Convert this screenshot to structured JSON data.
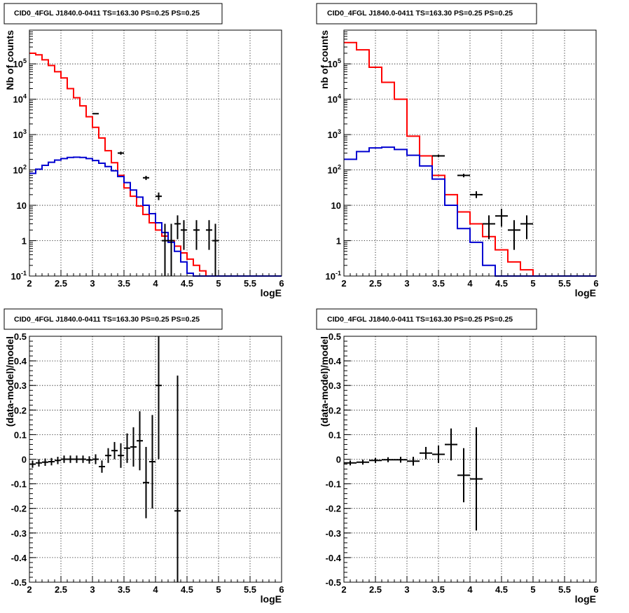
{
  "panel_title": "CID0_4FGL J1840.0-0411 TS=163.30 PS=0.25 PS=0.25",
  "colors": {
    "model_total": "#ff0000",
    "source_component": "#0000d0",
    "data": "#000000"
  },
  "chart_data": [
    {
      "id": "counts-fine",
      "type": "line",
      "title": "CID0_4FGL J1840.0-0411 TS=163.30 PS=0.25 PS=0.25",
      "xlabel": "logE",
      "ylabel": "Nb of counts",
      "xlim": [
        2,
        6
      ],
      "ylim": [
        0.1,
        900000
      ],
      "yscale": "log",
      "grid": true,
      "x_ticks": [
        "2",
        "2.5",
        "3",
        "3.5",
        "4",
        "4.5",
        "5",
        "5.5",
        "6"
      ],
      "y_ticks": [
        {
          "v": 0.1,
          "label": "10",
          "exp": "-1"
        },
        {
          "v": 1,
          "label": "1",
          "exp": ""
        },
        {
          "v": 10,
          "label": "10",
          "exp": ""
        },
        {
          "v": 100,
          "label": "10",
          "exp": "2"
        },
        {
          "v": 1000,
          "label": "10",
          "exp": "3"
        },
        {
          "v": 10000,
          "label": "10",
          "exp": "4"
        },
        {
          "v": 100000,
          "label": "10",
          "exp": "5"
        }
      ],
      "bin_edges": [
        2.0,
        2.1,
        2.2,
        2.3,
        2.4,
        2.5,
        2.6,
        2.7,
        2.8,
        2.9,
        3.0,
        3.1,
        3.2,
        3.3,
        3.4,
        3.5,
        3.6,
        3.7,
        3.8,
        3.9,
        4.0,
        4.1,
        4.2,
        4.3,
        4.4,
        4.5,
        4.6,
        4.7,
        4.8,
        4.9,
        5.0,
        5.1,
        5.2,
        5.3,
        5.4,
        5.5,
        5.6,
        5.7,
        5.8,
        5.9,
        6.0
      ],
      "series": [
        {
          "role": "model_total",
          "values": [
            200000,
            180000,
            130000,
            90000,
            60000,
            40000,
            20000,
            11000,
            6500,
            3200,
            1600,
            800,
            350,
            160,
            70,
            31,
            18,
            9.5,
            5.5,
            3.2,
            2.0,
            1.35,
            1.0,
            0.7,
            0.45,
            0.3,
            0.2,
            0.14,
            0.1,
            0.1,
            0.1,
            0.1,
            0.1,
            0.1,
            0.1,
            0.1,
            0.1,
            0.1,
            0.1,
            0.1
          ]
        },
        {
          "role": "source_component",
          "values": [
            80,
            105,
            135,
            165,
            190,
            210,
            225,
            230,
            225,
            210,
            185,
            155,
            125,
            95,
            65,
            44,
            27,
            17,
            10,
            5.8,
            3.2,
            1.7,
            0.9,
            0.5,
            0.25,
            0.12,
            0.1,
            0.1,
            0.1,
            0.1,
            0.1,
            0.1,
            0.1,
            0.1,
            0.1,
            0.1,
            0.1,
            0.1,
            0.1,
            0.1
          ]
        }
      ],
      "data_points": [
        {
          "x": 3.05,
          "y": 3900,
          "xerr": 0.05
        },
        {
          "x": 3.45,
          "y": 300,
          "xerr": 0.05,
          "ylo": 270,
          "yhi": 330
        },
        {
          "x": 3.85,
          "y": 60,
          "xerr": 0.05,
          "ylo": 52,
          "yhi": 68
        },
        {
          "x": 4.05,
          "y": 18,
          "xerr": 0.05,
          "ylo": 14,
          "yhi": 23
        },
        {
          "x": 4.15,
          "y": 1,
          "xerr": 0.05,
          "ylo": 0.1,
          "yhi": 3
        },
        {
          "x": 4.25,
          "y": 1,
          "xerr": 0.05,
          "ylo": 0.1,
          "yhi": 3
        },
        {
          "x": 4.35,
          "y": 3,
          "xerr": 0.05,
          "ylo": 1.1,
          "yhi": 5.2
        },
        {
          "x": 4.45,
          "y": 2,
          "xerr": 0.05,
          "ylo": 0.55,
          "yhi": 3.8
        },
        {
          "x": 4.65,
          "y": 2,
          "xerr": 0.05,
          "ylo": 0.55,
          "yhi": 3.8
        },
        {
          "x": 4.85,
          "y": 2,
          "xerr": 0.05,
          "ylo": 0.55,
          "yhi": 3.8
        },
        {
          "x": 4.95,
          "y": 1,
          "xerr": 0.05,
          "ylo": 0.1,
          "yhi": 3
        }
      ]
    },
    {
      "id": "counts-coarse",
      "type": "line",
      "title": "CID0_4FGL J1840.0-0411 TS=163.30 PS=0.25 PS=0.25",
      "xlabel": "logE",
      "ylabel": "nb of counts",
      "xlim": [
        2,
        6
      ],
      "ylim": [
        0.1,
        900000
      ],
      "yscale": "log",
      "grid": true,
      "x_ticks": [
        "2",
        "2.5",
        "3",
        "3.5",
        "4",
        "4.5",
        "5",
        "5.5",
        "6"
      ],
      "y_ticks": [
        {
          "v": 0.1,
          "label": "10",
          "exp": "-1"
        },
        {
          "v": 1,
          "label": "1",
          "exp": ""
        },
        {
          "v": 10,
          "label": "10",
          "exp": ""
        },
        {
          "v": 100,
          "label": "10",
          "exp": "2"
        },
        {
          "v": 1000,
          "label": "10",
          "exp": "3"
        },
        {
          "v": 10000,
          "label": "10",
          "exp": "4"
        },
        {
          "v": 100000,
          "label": "10",
          "exp": "5"
        }
      ],
      "bin_edges": [
        2.0,
        2.2,
        2.4,
        2.6,
        2.8,
        3.0,
        3.2,
        3.4,
        3.6,
        3.8,
        4.0,
        4.2,
        4.4,
        4.6,
        4.8,
        5.0,
        5.2,
        5.4,
        5.6,
        5.8,
        6.0
      ],
      "series": [
        {
          "role": "model_total",
          "values": [
            400000,
            250000,
            80000,
            30000,
            10000,
            900,
            250,
            70,
            20,
            6.5,
            3.0,
            1.3,
            0.55,
            0.25,
            0.15,
            0.1,
            0.1,
            0.1,
            0.1,
            0.1
          ]
        },
        {
          "role": "source_component",
          "values": [
            200,
            330,
            420,
            440,
            380,
            260,
            130,
            55,
            10,
            2.2,
            0.9,
            0.2,
            0.1,
            0.1,
            0.1,
            0.1,
            0.1,
            0.1,
            0.1,
            0.1
          ]
        }
      ],
      "data_points": [
        {
          "x": 3.5,
          "y": 250,
          "xerr": 0.1,
          "ylo": 230,
          "yhi": 270
        },
        {
          "x": 3.9,
          "y": 70,
          "xerr": 0.1,
          "ylo": 62,
          "yhi": 78
        },
        {
          "x": 4.1,
          "y": 20,
          "xerr": 0.1,
          "ylo": 16,
          "yhi": 25
        },
        {
          "x": 4.3,
          "y": 3,
          "xerr": 0.1,
          "ylo": 1.1,
          "yhi": 5.2
        },
        {
          "x": 4.5,
          "y": 5,
          "xerr": 0.1,
          "ylo": 2.5,
          "yhi": 8
        },
        {
          "x": 4.7,
          "y": 2,
          "xerr": 0.1,
          "ylo": 0.55,
          "yhi": 3.8
        },
        {
          "x": 4.9,
          "y": 3,
          "xerr": 0.1,
          "ylo": 1.1,
          "yhi": 5.2
        }
      ]
    },
    {
      "id": "residuals-fine",
      "type": "scatter",
      "title": "CID0_4FGL J1840.0-0411 TS=163.30 PS=0.25 PS=0.25",
      "xlabel": "logE",
      "ylabel": "(data-model)/model",
      "xlim": [
        2,
        6
      ],
      "ylim": [
        -0.5,
        0.5
      ],
      "grid": true,
      "x_ticks": [
        "2",
        "2.5",
        "3",
        "3.5",
        "4",
        "4.5",
        "5",
        "5.5",
        "6"
      ],
      "y_ticks": [
        "-0.5",
        "-0.4",
        "-0.3",
        "-0.2",
        "-0.1",
        "0",
        "0.1",
        "0.2",
        "0.3",
        "0.4",
        "0.5"
      ],
      "points": [
        {
          "x": 2.05,
          "y": -0.02,
          "xerr": 0.05,
          "yerr": 0.015
        },
        {
          "x": 2.15,
          "y": -0.015,
          "xerr": 0.05,
          "yerr": 0.015
        },
        {
          "x": 2.25,
          "y": -0.012,
          "xerr": 0.05,
          "yerr": 0.015
        },
        {
          "x": 2.35,
          "y": -0.01,
          "xerr": 0.05,
          "yerr": 0.015
        },
        {
          "x": 2.45,
          "y": -0.005,
          "xerr": 0.05,
          "yerr": 0.015
        },
        {
          "x": 2.55,
          "y": 0.0,
          "xerr": 0.05,
          "yerr": 0.015
        },
        {
          "x": 2.65,
          "y": 0.0,
          "xerr": 0.05,
          "yerr": 0.015
        },
        {
          "x": 2.75,
          "y": 0.0,
          "xerr": 0.05,
          "yerr": 0.015
        },
        {
          "x": 2.85,
          "y": 0.0,
          "xerr": 0.05,
          "yerr": 0.015
        },
        {
          "x": 2.95,
          "y": -0.003,
          "xerr": 0.05,
          "yerr": 0.015
        },
        {
          "x": 3.05,
          "y": 0.0,
          "xerr": 0.05,
          "yerr": 0.02
        },
        {
          "x": 3.15,
          "y": -0.03,
          "xerr": 0.05,
          "yerr": 0.025
        },
        {
          "x": 3.25,
          "y": 0.015,
          "xerr": 0.05,
          "yerr": 0.03
        },
        {
          "x": 3.35,
          "y": 0.035,
          "xerr": 0.05,
          "yerr": 0.035
        },
        {
          "x": 3.45,
          "y": 0.015,
          "xerr": 0.05,
          "yerr": 0.05
        },
        {
          "x": 3.55,
          "y": 0.045,
          "xerr": 0.05,
          "yerr": 0.06
        },
        {
          "x": 3.65,
          "y": 0.05,
          "xerr": 0.05,
          "yerr": 0.08
        },
        {
          "x": 3.75,
          "y": 0.075,
          "xerr": 0.05,
          "yerr": 0.12
        },
        {
          "x": 3.85,
          "y": -0.095,
          "xerr": 0.05,
          "yerr": 0.145
        },
        {
          "x": 3.95,
          "y": -0.01,
          "xerr": 0.05,
          "yerr": 0.19
        },
        {
          "x": 4.05,
          "y": 0.3,
          "xerr": 0.05,
          "yerr": 0.3
        },
        {
          "x": 4.35,
          "y": -0.21,
          "xerr": 0.05,
          "yerr": 0.55
        }
      ]
    },
    {
      "id": "residuals-coarse",
      "type": "scatter",
      "title": "CID0_4FGL J1840.0-0411 TS=163.30 PS=0.25 PS=0.25",
      "xlabel": "logE",
      "ylabel": "(data-model)/model",
      "xlim": [
        2,
        6
      ],
      "ylim": [
        -0.5,
        0.5
      ],
      "grid": true,
      "x_ticks": [
        "2",
        "2.5",
        "3",
        "3.5",
        "4",
        "4.5",
        "5",
        "5.5",
        "6"
      ],
      "y_ticks": [
        "-0.5",
        "-0.4",
        "-0.3",
        "-0.2",
        "-0.1",
        "0",
        "0.1",
        "0.2",
        "0.3",
        "0.4",
        "0.5"
      ],
      "points": [
        {
          "x": 2.1,
          "y": -0.015,
          "xerr": 0.1,
          "yerr": 0.01
        },
        {
          "x": 2.3,
          "y": -0.012,
          "xerr": 0.1,
          "yerr": 0.01
        },
        {
          "x": 2.5,
          "y": -0.005,
          "xerr": 0.1,
          "yerr": 0.01
        },
        {
          "x": 2.7,
          "y": -0.002,
          "xerr": 0.1,
          "yerr": 0.01
        },
        {
          "x": 2.9,
          "y": -0.002,
          "xerr": 0.1,
          "yerr": 0.012
        },
        {
          "x": 3.1,
          "y": -0.008,
          "xerr": 0.1,
          "yerr": 0.018
        },
        {
          "x": 3.3,
          "y": 0.025,
          "xerr": 0.1,
          "yerr": 0.025
        },
        {
          "x": 3.5,
          "y": 0.02,
          "xerr": 0.1,
          "yerr": 0.035
        },
        {
          "x": 3.7,
          "y": 0.06,
          "xerr": 0.1,
          "yerr": 0.065
        },
        {
          "x": 3.9,
          "y": -0.065,
          "xerr": 0.1,
          "yerr": 0.11
        },
        {
          "x": 4.1,
          "y": -0.08,
          "xerr": 0.1,
          "yerr": 0.21
        }
      ]
    }
  ]
}
